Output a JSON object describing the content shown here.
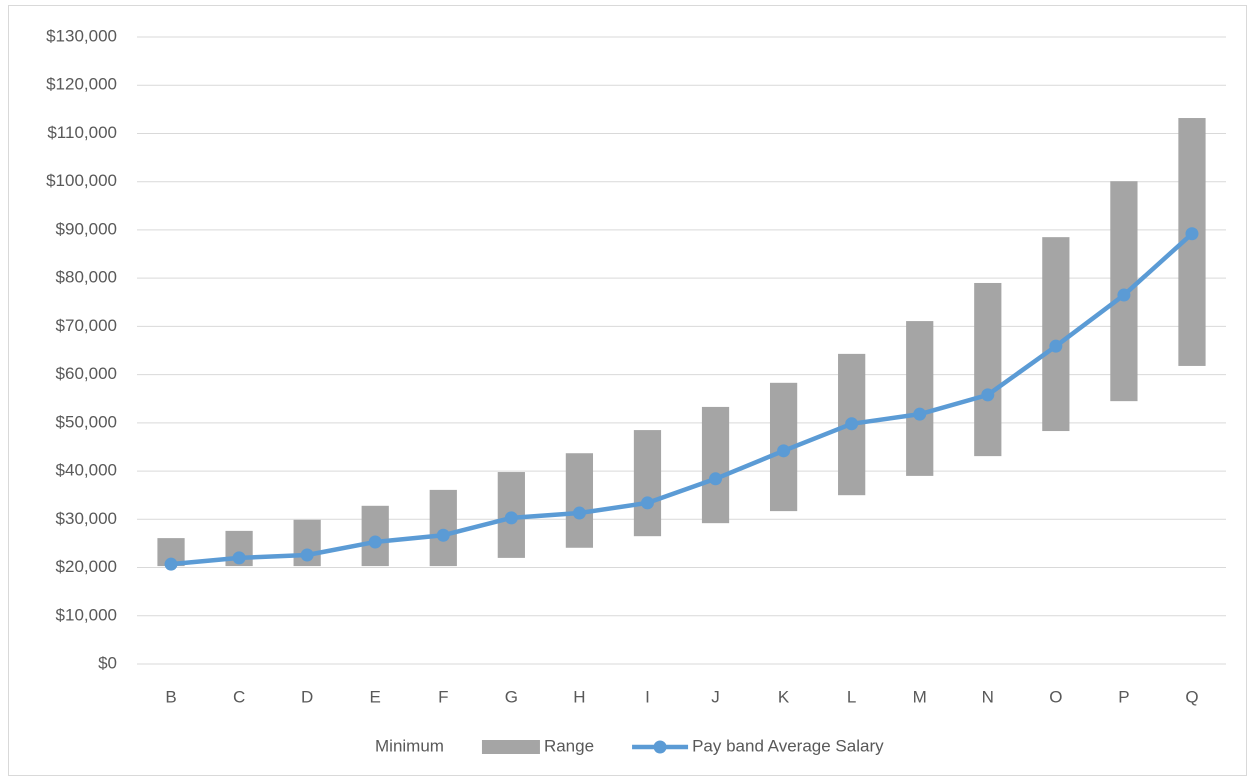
{
  "chart_data": {
    "type": "bar",
    "stacked": true,
    "grid": true,
    "legend": "bottom",
    "categories": [
      "B",
      "C",
      "D",
      "E",
      "F",
      "G",
      "H",
      "I",
      "J",
      "K",
      "L",
      "M",
      "N",
      "O",
      "P",
      "Q"
    ],
    "series": [
      {
        "name": "Minimum",
        "type": "bar",
        "color": "none",
        "values": [
          20300,
          20300,
          20300,
          20300,
          20300,
          22000,
          24100,
          26500,
          29200,
          31700,
          35000,
          39000,
          43100,
          48300,
          54500,
          61800
        ]
      },
      {
        "name": "Range",
        "type": "bar",
        "color": "#a5a5a5",
        "values": [
          5800,
          7300,
          9600,
          12500,
          15800,
          17800,
          19600,
          22000,
          24100,
          26600,
          29300,
          32100,
          35900,
          40200,
          45600,
          51400
        ]
      },
      {
        "name": "Pay band Average Salary",
        "type": "line",
        "color": "#5b9bd5",
        "values": [
          20700,
          22000,
          22600,
          25300,
          26700,
          30300,
          31300,
          33400,
          38400,
          44200,
          49800,
          51800,
          55800,
          65900,
          76500,
          89200
        ]
      }
    ],
    "ylim": [
      0,
      130000
    ],
    "yticks": [
      {
        "value": 0,
        "label": "$0"
      },
      {
        "value": 10000,
        "label": "$10,000"
      },
      {
        "value": 20000,
        "label": "$20,000"
      },
      {
        "value": 30000,
        "label": "$30,000"
      },
      {
        "value": 40000,
        "label": "$40,000"
      },
      {
        "value": 50000,
        "label": "$50,000"
      },
      {
        "value": 60000,
        "label": "$60,000"
      },
      {
        "value": 70000,
        "label": "$70,000"
      },
      {
        "value": 80000,
        "label": "$80,000"
      },
      {
        "value": 90000,
        "label": "$90,000"
      },
      {
        "value": 100000,
        "label": "$100,000"
      },
      {
        "value": 110000,
        "label": "$110,000"
      },
      {
        "value": 120000,
        "label": "$120,000"
      },
      {
        "value": 130000,
        "label": "$130,000"
      }
    ]
  }
}
